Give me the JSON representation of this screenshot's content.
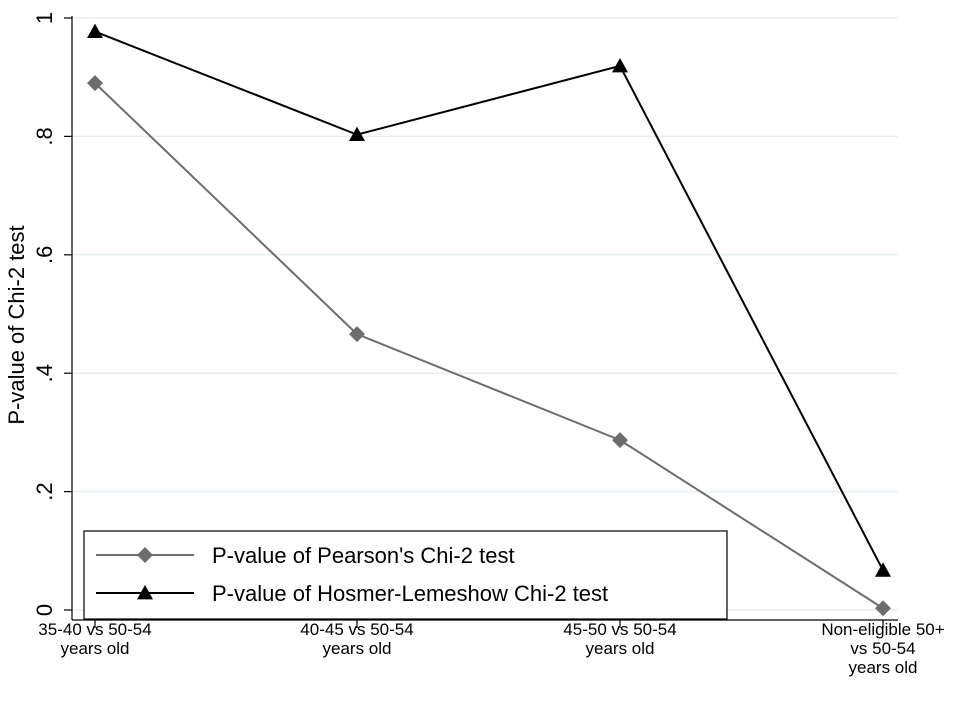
{
  "chart_data": {
    "type": "line",
    "ylabel": "P-value of Chi-2 test",
    "xlabel": "",
    "ylim": [
      0,
      1
    ],
    "y_ticks": [
      0,
      0.2,
      0.4,
      0.6,
      0.8,
      1
    ],
    "y_tick_labels": [
      "0",
      ".2",
      ".4",
      ".6",
      ".8",
      "1"
    ],
    "grid": true,
    "categories": [
      [
        "35-40 vs 50-54",
        "years old"
      ],
      [
        "40-45 vs 50-54",
        "years old"
      ],
      [
        "45-50 vs 50-54",
        "years old"
      ],
      [
        "Non-eligible 50+",
        "vs 50-54",
        "years old"
      ]
    ],
    "series": [
      {
        "name": "P-value of Pearson's Chi-2 test",
        "values": [
          0.89,
          0.466,
          0.287,
          0.003
        ],
        "color": "#6d6d6d",
        "marker": "diamond"
      },
      {
        "name": "P-value of Hosmer-Lemeshow Chi-2 test",
        "values": [
          0.977,
          0.803,
          0.919,
          0.067
        ],
        "color": "#000000",
        "marker": "triangle"
      }
    ],
    "legend_position": "bottom-left"
  }
}
